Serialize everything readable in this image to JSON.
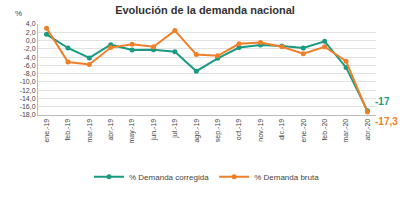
{
  "chart_data": {
    "type": "line",
    "title": "Evolución de la demanda nacional",
    "y_label": "%",
    "categories": [
      "ene.-19",
      "feb.-19",
      "mar.-19",
      "abr.-19",
      "may.-19",
      "jun.-19",
      "jul.-19",
      "ago.-19",
      "sep.-19",
      "oct.-19",
      "nov.-19",
      "dic.-19",
      "ene.-20",
      "feb.-20",
      "mar.-20",
      "abr.-20"
    ],
    "series": [
      {
        "name": "% Demanda corregida",
        "color": "#1a9a80",
        "marker": "circle",
        "values": [
          1.5,
          -1.8,
          -4.2,
          -1.0,
          -2.3,
          -2.2,
          -2.7,
          -7.4,
          -4.3,
          -1.7,
          -1.1,
          -1.3,
          -1.8,
          -0.2,
          -6.5,
          -17
        ],
        "value_labels": [
          null,
          null,
          null,
          null,
          null,
          null,
          null,
          null,
          null,
          null,
          null,
          null,
          null,
          null,
          null,
          "-17"
        ]
      },
      {
        "name": "% Demanda bruta",
        "color": "#f07f2a",
        "marker": "circle",
        "values": [
          3.0,
          -5.2,
          -5.8,
          -1.7,
          -0.9,
          -1.5,
          2.4,
          -3.4,
          -3.7,
          -0.8,
          -0.5,
          -1.5,
          -3.2,
          -1.5,
          -5.0,
          -17.3
        ],
        "value_labels": [
          null,
          null,
          null,
          null,
          null,
          null,
          null,
          null,
          null,
          null,
          null,
          null,
          null,
          null,
          null,
          "-17,3"
        ]
      }
    ],
    "ylim": [
      -18,
      4
    ],
    "yticks": [
      {
        "value": 4,
        "label": "4,0"
      },
      {
        "value": 2,
        "label": "2,0"
      },
      {
        "value": 0,
        "label": "0,0"
      },
      {
        "value": -2,
        "label": "-2,0"
      },
      {
        "value": -4,
        "label": "-4,0"
      },
      {
        "value": -6,
        "label": "-6,0"
      },
      {
        "value": -8,
        "label": "-8,0"
      },
      {
        "value": -10,
        "label": "-10,0"
      },
      {
        "value": -12,
        "label": "-12,0"
      },
      {
        "value": -14,
        "label": "-14,0"
      },
      {
        "value": -16,
        "label": "-16,0"
      },
      {
        "value": -18,
        "label": "-18,0"
      }
    ],
    "grid": true,
    "legend": "bottom",
    "data_labels": true
  }
}
